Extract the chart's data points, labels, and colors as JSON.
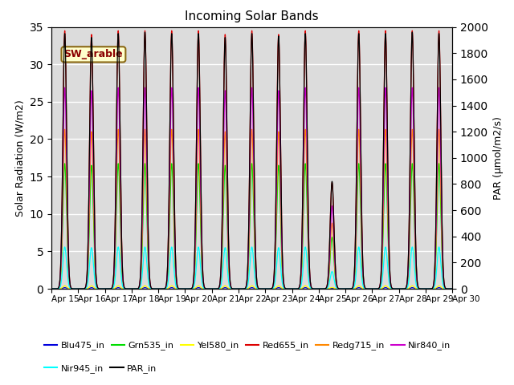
{
  "title": "Incoming Solar Bands",
  "ylabel_left": "Solar Radiation (W/m2)",
  "ylabel_right": "PAR (μmol/m2/s)",
  "ylim_left": [
    0,
    35
  ],
  "ylim_right": [
    0,
    2000
  ],
  "yticks_left": [
    0,
    5,
    10,
    15,
    20,
    25,
    30,
    35
  ],
  "yticks_right": [
    0,
    200,
    400,
    600,
    800,
    1000,
    1200,
    1400,
    1600,
    1800,
    2000
  ],
  "xticklabels": [
    "Apr 15",
    "Apr 16",
    "Apr 17",
    "Apr 18",
    "Apr 19",
    "Apr 20",
    "Apr 21",
    "Apr 22",
    "Apr 23",
    "Apr 24",
    "Apr 25",
    "Apr 26",
    "Apr 27",
    "Apr 28",
    "Apr 29",
    "Apr 30"
  ],
  "annotation_text": "SW_arable",
  "background_color": "#dcdcdc",
  "series_order": [
    "Blu475_in",
    "Grn535_in",
    "Yel580_in",
    "Red655_in",
    "Redg715_in",
    "Nir840_in",
    "Nir945_in",
    "PAR_in"
  ],
  "series": {
    "Blu475_in": {
      "color": "#0000dd",
      "peak": 0.15,
      "right": false
    },
    "Grn535_in": {
      "color": "#00dd00",
      "peak": 16.5,
      "right": false
    },
    "Yel580_in": {
      "color": "#ffff00",
      "peak": 0.4,
      "right": false
    },
    "Red655_in": {
      "color": "#dd0000",
      "peak": 34.0,
      "right": false
    },
    "Redg715_in": {
      "color": "#ff8800",
      "peak": 21.0,
      "right": false
    },
    "Nir840_in": {
      "color": "#cc00cc",
      "peak": 26.5,
      "right": false
    },
    "Nir945_in": {
      "color": "#00ffff",
      "peak": 5.5,
      "right": false
    },
    "PAR_in": {
      "color": "#000000",
      "peak": 1950,
      "right": true
    }
  },
  "day_peaks_left": [
    34.5,
    34.0,
    34.5,
    34.5,
    34.5,
    34.5,
    34.0,
    34.5,
    34.0,
    34.5,
    14.2,
    34.5,
    34.5,
    34.5,
    34.5
  ],
  "day_peaks_right": [
    1950,
    1920,
    1950,
    1960,
    1950,
    1950,
    1920,
    1950,
    1930,
    1950,
    820,
    1950,
    1950,
    1960,
    1950
  ],
  "days": 15,
  "cloudy_day_idx": 10,
  "legend_colors": [
    "#0000dd",
    "#00dd00",
    "#ffff00",
    "#dd0000",
    "#ff8800",
    "#cc00cc",
    "#00ffff",
    "#000000"
  ],
  "legend_labels": [
    "Blu475_in",
    "Grn535_in",
    "Yel580_in",
    "Red655_in",
    "Redg715_in",
    "Nir840_in",
    "Nir945_in",
    "PAR_in"
  ]
}
